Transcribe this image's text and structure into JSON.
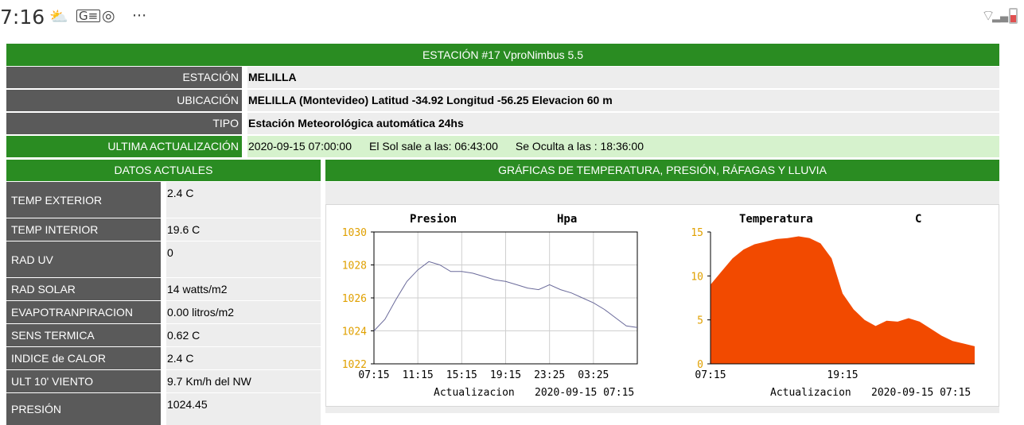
{
  "status_bar": {
    "time": "7:16",
    "more": "···"
  },
  "header": {
    "title": "ESTACIÓN #17 VproNimbus 5.5"
  },
  "info": [
    {
      "label": "ESTACIÓN",
      "value": "MELILLA"
    },
    {
      "label": "UBICACIÓN",
      "value": "MELILLA (Montevideo)  Latitud  -34.92 Longitud -56.25 Elevacion 60 m"
    },
    {
      "label": "TIPO",
      "value": "Estación Meteorológica automática 24hs"
    }
  ],
  "update": {
    "label": "ULTIMA ACTUALIZACIÓN",
    "datetime": "2020-09-15 07:00:00",
    "sunrise": "El Sol sale a las: 06:43:00",
    "sunset": "Se Oculta a las : 18:36:00"
  },
  "current": {
    "title": "DATOS ACTUALES",
    "rows": [
      {
        "label": "TEMP EXTERIOR",
        "value": "2.4 C"
      },
      {
        "label": "TEMP INTERIOR",
        "value": "19.6 C"
      },
      {
        "label": "RAD UV",
        "value": "0"
      },
      {
        "label": "RAD SOLAR",
        "value": "14 watts/m2"
      },
      {
        "label": "EVAPOTRANPIRACION",
        "value": "0.00  litros/m2"
      },
      {
        "label": "SENS TERMICA",
        "value": "0.62 C"
      },
      {
        "label": "INDICE de CALOR",
        "value": "2.4 C"
      },
      {
        "label": "ULT 10' VIENTO",
        "value": "9.7  Km/h del NW"
      },
      {
        "label": "PRESIÓN",
        "value": "1024.45"
      }
    ]
  },
  "graphs": {
    "title": "GRÁFICAS DE TEMPERATURA, PRESIÓN, RÁFAGAS Y LLUVIA"
  },
  "chart_data": [
    {
      "type": "line",
      "title": "Presion",
      "unit": "Hpa",
      "ylim": [
        1022,
        1030
      ],
      "yticks": [
        "1030",
        "1028",
        "1026",
        "1024",
        "1022"
      ],
      "xticks": [
        "07:15",
        "11:15",
        "15:15",
        "19:15",
        "23:25",
        "03:25"
      ],
      "footer": "Actualizacion",
      "footer_date": "2020-09-15 07:15",
      "color": "#6a6a9a",
      "x": [
        0,
        1,
        2,
        3,
        4,
        5,
        6,
        7,
        8,
        9,
        10,
        11,
        12,
        13,
        14,
        15,
        16,
        17,
        18,
        19,
        20,
        21,
        22,
        23,
        24
      ],
      "values": [
        1024.0,
        1024.7,
        1025.9,
        1027.0,
        1027.7,
        1028.2,
        1028.0,
        1027.6,
        1027.6,
        1027.5,
        1027.3,
        1027.1,
        1027.0,
        1026.8,
        1026.6,
        1026.5,
        1026.8,
        1026.5,
        1026.3,
        1026.0,
        1025.7,
        1025.3,
        1024.8,
        1024.3,
        1024.2
      ],
      "grid": true
    },
    {
      "type": "area",
      "title": "Temperatura",
      "unit": "C",
      "ylim": [
        0,
        15
      ],
      "yticks": [
        "15",
        "10",
        "5",
        "0"
      ],
      "xticks": [
        "07:15",
        "19:15"
      ],
      "footer": "Actualizacion",
      "footer_date": "2020-09-15 07:15",
      "color": "#f24a00",
      "x": [
        0,
        1,
        2,
        3,
        4,
        5,
        6,
        7,
        8,
        9,
        10,
        11,
        12,
        13,
        14,
        15,
        16,
        17,
        18,
        19,
        20,
        21,
        22,
        23,
        24
      ],
      "values": [
        9.0,
        10.5,
        12.0,
        13.0,
        13.6,
        13.9,
        14.2,
        14.3,
        14.5,
        14.3,
        13.7,
        12.0,
        8.0,
        6.2,
        5.0,
        4.3,
        4.9,
        4.8,
        5.2,
        4.8,
        4.0,
        3.2,
        2.6,
        2.3,
        2.0
      ],
      "grid": false
    }
  ]
}
